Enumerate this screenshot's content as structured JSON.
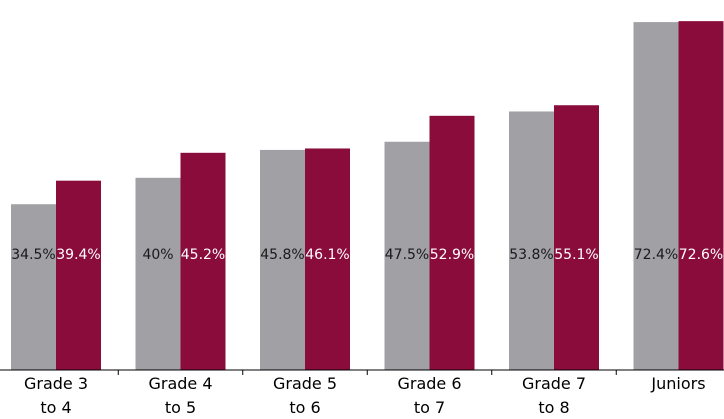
{
  "chart_data": {
    "type": "bar",
    "categories": [
      [
        "Grade 3",
        "to 4"
      ],
      [
        "Grade 4",
        "to 5"
      ],
      [
        "Grade 5",
        "to 6"
      ],
      [
        "Grade 6",
        "to 7"
      ],
      [
        "Grade 7",
        "to 8"
      ],
      [
        "Juniors"
      ]
    ],
    "series": [
      {
        "values": [
          34.5,
          40,
          45.8,
          47.5,
          53.8,
          72.4
        ],
        "labels": [
          "34.5%",
          "40%",
          "45.8%",
          "47.5%",
          "53.8%",
          "72.4%"
        ]
      },
      {
        "values": [
          39.4,
          45.2,
          46.1,
          52.9,
          55.1,
          72.6
        ],
        "labels": [
          "39.4%",
          "45.2%",
          "46.1%",
          "52.9%",
          "55.1%",
          "72.6%"
        ]
      }
    ],
    "title": "",
    "xlabel": "",
    "ylabel": "",
    "ylim": [
      0,
      77
    ],
    "grid": false,
    "legend": "none"
  },
  "colors": {
    "series_1": "#a0a0a5",
    "series_2": "#8a0c3a",
    "label_series_1": "#1a1a1a",
    "label_series_2": "#ffffff",
    "axis": "#000000"
  }
}
